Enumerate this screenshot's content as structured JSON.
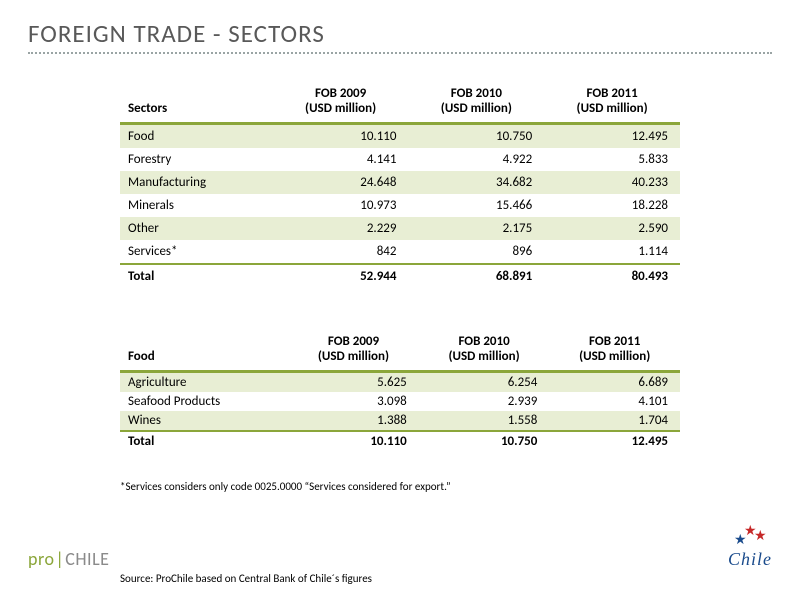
{
  "colors": {
    "title": "#595959",
    "underline": "#9aa4a4",
    "accent": "#8ba63a",
    "stripe": "#e8eed4",
    "text": "#222222",
    "footnote": "#444444",
    "logo_pro": "#8ba63a",
    "logo_chile": "#8a8a8a",
    "logo_divider": "#8ba63a",
    "star_red": "#c62828",
    "star_blue": "#1a4b8c",
    "chile_word": "#1a4b8c"
  },
  "fontsizes": {
    "title": 25,
    "table": 13,
    "footnote": 11,
    "logo": 18
  },
  "title": "FOREIGN TRADE - SECTORS",
  "table1": {
    "col0": "Sectors",
    "years": [
      "FOB 2009",
      "FOB 2010",
      "FOB 2011"
    ],
    "unit": "(USD million)",
    "rows": [
      {
        "label": "Food",
        "v": [
          "10.110",
          "10.750",
          "12.495"
        ]
      },
      {
        "label": "Forestry",
        "v": [
          "4.141",
          "4.922",
          "5.833"
        ]
      },
      {
        "label": "Manufacturing",
        "v": [
          "24.648",
          "34.682",
          "40.233"
        ]
      },
      {
        "label": "Minerals",
        "v": [
          "10.973",
          "15.466",
          "18.228"
        ]
      },
      {
        "label": "Other",
        "v": [
          "2.229",
          "2.175",
          "2.590"
        ]
      },
      {
        "label": "Services*",
        "v": [
          "842",
          "896",
          "1.114"
        ]
      }
    ],
    "total": {
      "label": "Total",
      "v": [
        "52.944",
        "68.891",
        "80.493"
      ]
    }
  },
  "table2": {
    "col0": "Food",
    "years": [
      "FOB 2009",
      "FOB 2010",
      "FOB 2011"
    ],
    "unit": "(USD million)",
    "rows": [
      {
        "label": "Agriculture",
        "v": [
          "5.625",
          "6.254",
          "6.689"
        ]
      },
      {
        "label": "Seafood Products",
        "v": [
          "3.098",
          "2.939",
          "4.101"
        ]
      },
      {
        "label": "Wines",
        "v": [
          "1.388",
          "1.558",
          "1.704"
        ]
      }
    ],
    "total": {
      "label": "Total",
      "v": [
        "10.110",
        "10.750",
        "12.495"
      ]
    }
  },
  "footnote": "*Services considers only code 0025.0000 “Services considered for export.”",
  "source": "Source: ProChile based on Central Bank of Chile´s figures",
  "logo_left": {
    "pro": "pro",
    "chile": "CHILE"
  },
  "logo_right": {
    "word": "Chile"
  }
}
